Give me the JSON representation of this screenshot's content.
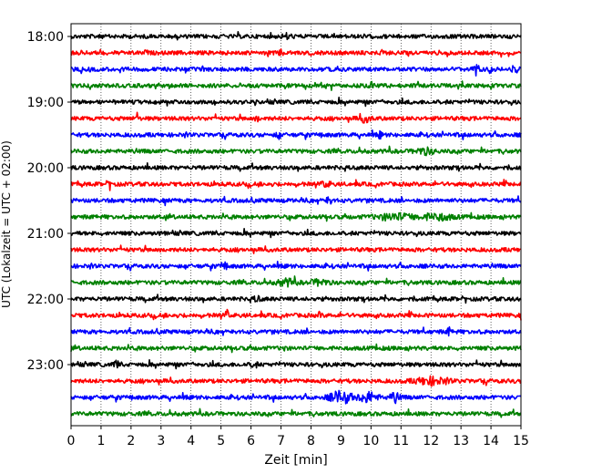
{
  "chart_data": {
    "type": "line",
    "title": "",
    "xlabel": "Zeit  [min]",
    "ylabel": "UTC (Lokalzeit = UTC + 02:00)",
    "xlim": [
      0,
      15
    ],
    "x_ticks": [
      "0",
      "1",
      "2",
      "3",
      "4",
      "5",
      "6",
      "7",
      "8",
      "9",
      "10",
      "11",
      "12",
      "13",
      "14",
      "15"
    ],
    "y_tick_labels": [
      "18:00",
      "19:00",
      "20:00",
      "21:00",
      "22:00",
      "23:00"
    ],
    "grid": "vertical dotted",
    "legend": "none",
    "trace_colors": [
      "#000000",
      "#ff0000",
      "#0000ff",
      "#008000"
    ],
    "series": [
      {
        "start": "18:00",
        "color": "#000000",
        "events": [
          [
            7.2,
            2.5,
            0.15
          ]
        ]
      },
      {
        "start": "18:15",
        "color": "#ff0000",
        "events": [
          [
            2.5,
            8,
            0.03
          ],
          [
            7.0,
            2,
            0.1
          ]
        ]
      },
      {
        "start": "18:30",
        "color": "#0000ff",
        "events": [
          [
            13.5,
            3,
            0.1
          ],
          [
            14.8,
            3,
            0.1
          ]
        ]
      },
      {
        "start": "18:45",
        "color": "#008000",
        "events": [
          [
            10.0,
            3,
            0.1
          ]
        ]
      },
      {
        "start": "19:00",
        "color": "#000000",
        "events": []
      },
      {
        "start": "19:15",
        "color": "#ff0000",
        "events": [
          [
            2.2,
            6,
            0.03
          ],
          [
            6.2,
            4,
            0.05
          ],
          [
            9.8,
            3,
            0.2
          ]
        ]
      },
      {
        "start": "19:30",
        "color": "#0000ff",
        "events": [
          [
            6.9,
            6,
            0.05
          ],
          [
            10.3,
            3,
            0.05
          ]
        ]
      },
      {
        "start": "19:45",
        "color": "#008000",
        "events": [
          [
            11.8,
            3,
            0.3
          ]
        ]
      },
      {
        "start": "20:00",
        "color": "#000000",
        "events": []
      },
      {
        "start": "20:15",
        "color": "#ff0000",
        "events": [
          [
            1.3,
            3,
            0.1
          ],
          [
            8.5,
            2.5,
            0.15
          ]
        ]
      },
      {
        "start": "20:30",
        "color": "#0000ff",
        "events": [
          [
            8.6,
            3,
            0.1
          ]
        ]
      },
      {
        "start": "20:45",
        "color": "#008000",
        "events": [
          [
            10.8,
            3,
            0.6
          ],
          [
            12.2,
            3,
            0.5
          ]
        ]
      },
      {
        "start": "21:00",
        "color": "#000000",
        "events": []
      },
      {
        "start": "21:15",
        "color": "#ff0000",
        "events": []
      },
      {
        "start": "21:30",
        "color": "#0000ff",
        "events": [
          [
            5.1,
            3,
            0.1
          ]
        ]
      },
      {
        "start": "21:45",
        "color": "#008000",
        "events": [
          [
            7.2,
            3,
            0.3
          ],
          [
            8.3,
            2.5,
            0.3
          ]
        ]
      },
      {
        "start": "22:00",
        "color": "#000000",
        "events": [
          [
            6.2,
            2.5,
            0.1
          ]
        ]
      },
      {
        "start": "22:15",
        "color": "#ff0000",
        "events": [
          [
            5.2,
            5,
            0.05
          ],
          [
            8.3,
            3,
            0.05
          ]
        ]
      },
      {
        "start": "22:30",
        "color": "#0000ff",
        "events": [
          [
            12.6,
            4,
            0.05
          ]
        ]
      },
      {
        "start": "22:45",
        "color": "#008000",
        "events": [
          [
            7.1,
            3,
            0.05
          ]
        ]
      },
      {
        "start": "23:00",
        "color": "#000000",
        "events": [
          [
            1.5,
            3,
            0.1
          ],
          [
            6.1,
            3,
            0.1
          ]
        ]
      },
      {
        "start": "23:15",
        "color": "#ff0000",
        "events": [
          [
            12.0,
            3.5,
            0.5
          ]
        ]
      },
      {
        "start": "23:30",
        "color": "#0000ff",
        "events": [
          [
            9.0,
            6,
            0.35
          ],
          [
            9.9,
            5,
            0.3
          ],
          [
            10.8,
            5,
            0.15
          ]
        ]
      },
      {
        "start": "23:45",
        "color": "#008000",
        "events": []
      }
    ]
  }
}
